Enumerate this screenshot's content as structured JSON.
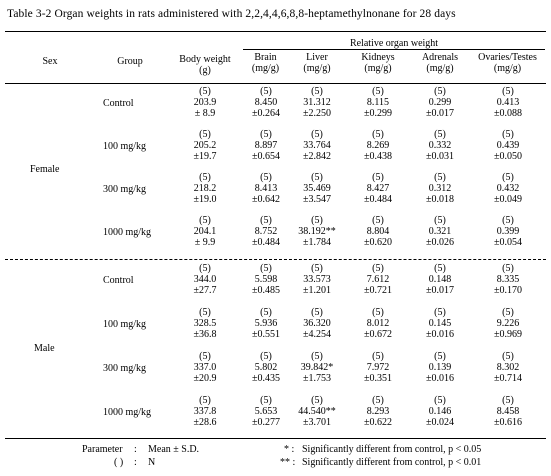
{
  "caption": "Table 3-2   Organ weights in rats administered with 2,2,4,4,6,8,8-heptamethylnonane for 28 days",
  "headers": {
    "sex": "Sex",
    "group": "Group",
    "body_weight": [
      "Body weight",
      "(g)"
    ],
    "relative": "Relative organ weight",
    "brain": [
      "Brain",
      "(mg/g)"
    ],
    "liver": [
      "Liver",
      "(mg/g)"
    ],
    "kidneys": [
      "Kidneys",
      "(mg/g)"
    ],
    "adrenals": [
      "Adrenals",
      "(mg/g)"
    ],
    "ovaries_testes": [
      "Ovaries/Testes",
      "(mg/g)"
    ]
  },
  "sexes": {
    "female": "Female",
    "male": "Male"
  },
  "rows": [
    {
      "group": "Control",
      "cells": [
        [
          "(5)",
          "203.9",
          "± 8.9"
        ],
        [
          "(5)",
          "8.450",
          "±0.264"
        ],
        [
          "(5)",
          "31.312",
          "±2.250"
        ],
        [
          "(5)",
          "8.115",
          "±0.299"
        ],
        [
          "(5)",
          "0.299",
          "±0.017"
        ],
        [
          "(5)",
          "0.413",
          "±0.088"
        ]
      ]
    },
    {
      "group": "100 mg/kg",
      "cells": [
        [
          "(5)",
          "205.2",
          "±19.7"
        ],
        [
          "(5)",
          "8.897",
          "±0.654"
        ],
        [
          "(5)",
          "33.764",
          "±2.842"
        ],
        [
          "(5)",
          "8.269",
          "±0.438"
        ],
        [
          "(5)",
          "0.332",
          "±0.031"
        ],
        [
          "(5)",
          "0.439",
          "±0.050"
        ]
      ]
    },
    {
      "group": "300 mg/kg",
      "cells": [
        [
          "(5)",
          "218.2",
          "±19.0"
        ],
        [
          "(5)",
          "8.413",
          "±0.642"
        ],
        [
          "(5)",
          "35.469",
          "±3.547"
        ],
        [
          "(5)",
          "8.427",
          "±0.484"
        ],
        [
          "(5)",
          "0.312",
          "±0.018"
        ],
        [
          "(5)",
          "0.432",
          "±0.049"
        ]
      ]
    },
    {
      "group": "1000 mg/kg",
      "cells": [
        [
          "(5)",
          "204.1",
          "± 9.9"
        ],
        [
          "(5)",
          "8.752",
          "±0.484"
        ],
        [
          "(5)",
          "38.192**",
          "±1.784"
        ],
        [
          "(5)",
          "8.804",
          "±0.620"
        ],
        [
          "(5)",
          "0.321",
          "±0.026"
        ],
        [
          "(5)",
          "0.399",
          "±0.054"
        ]
      ]
    },
    {
      "group": "Control",
      "cells": [
        [
          "(5)",
          "344.0",
          "±27.7"
        ],
        [
          "(5)",
          "5.598",
          "±0.485"
        ],
        [
          "(5)",
          "33.573",
          "±1.201"
        ],
        [
          "(5)",
          "7.612",
          "±0.721"
        ],
        [
          "(5)",
          "0.148",
          "±0.017"
        ],
        [
          "(5)",
          "8.335",
          "±0.170"
        ]
      ]
    },
    {
      "group": "100 mg/kg",
      "cells": [
        [
          "(5)",
          "328.5",
          "±36.8"
        ],
        [
          "(5)",
          "5.936",
          "±0.551"
        ],
        [
          "(5)",
          "36.320",
          "±4.254"
        ],
        [
          "(5)",
          "8.012",
          "±0.672"
        ],
        [
          "(5)",
          "0.145",
          "±0.016"
        ],
        [
          "(5)",
          "9.226",
          "±0.969"
        ]
      ]
    },
    {
      "group": "300 mg/kg",
      "cells": [
        [
          "(5)",
          "337.0",
          "±20.9"
        ],
        [
          "(5)",
          "5.802",
          "±0.435"
        ],
        [
          "(5)",
          "39.842*",
          "±1.753"
        ],
        [
          "(5)",
          "7.972",
          "±0.351"
        ],
        [
          "(5)",
          "0.139",
          "±0.016"
        ],
        [
          "(5)",
          "8.302",
          "±0.714"
        ]
      ]
    },
    {
      "group": "1000 mg/kg",
      "cells": [
        [
          "(5)",
          "337.8",
          "±28.6"
        ],
        [
          "(5)",
          "5.653",
          "±0.277"
        ],
        [
          "(5)",
          "44.540**",
          "±3.701"
        ],
        [
          "(5)",
          "8.293",
          "±0.622"
        ],
        [
          "(5)",
          "0.146",
          "±0.024"
        ],
        [
          "(5)",
          "8.458",
          "±0.616"
        ]
      ]
    }
  ],
  "footnotes": {
    "param_label": "Parameter",
    "param_sep": ":",
    "param_value": "Mean ± S.D.",
    "n_label": "(   )",
    "n_sep": ":",
    "n_value": "N",
    "sig1_mark": "* :",
    "sig1_text": "Significantly different from control, p < 0.05",
    "sig2_mark": "** :",
    "sig2_text": "Significantly different from control, p < 0.01"
  }
}
